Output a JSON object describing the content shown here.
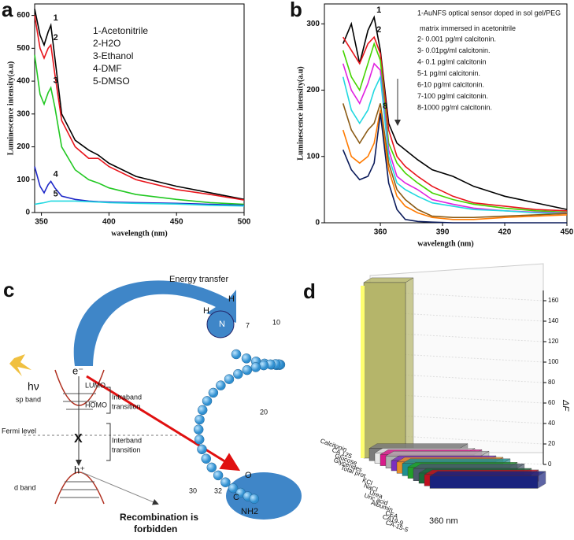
{
  "chart_data": [
    {
      "type": "line",
      "panel_label": "a",
      "xlabel": "wavelength (nm)",
      "ylabel": "Luminescence intensity(a.u)",
      "xlim": [
        345,
        500
      ],
      "ylim": [
        0,
        635
      ],
      "xticks": [
        350,
        400,
        450,
        500
      ],
      "yticks": [
        0,
        100,
        200,
        300,
        400,
        500,
        600
      ],
      "x": [
        345,
        349,
        352,
        355,
        357,
        360,
        365,
        375,
        385,
        392,
        400,
        420,
        450,
        475,
        500
      ],
      "series": [
        {
          "name": "1-Acetonitrile",
          "curve_label": "1",
          "color": "#000000",
          "values": [
            620,
            540,
            510,
            550,
            570,
            470,
            300,
            220,
            190,
            175,
            150,
            110,
            80,
            60,
            40
          ]
        },
        {
          "name": "2-H2O",
          "curve_label": "2",
          "color": "#e8141b",
          "values": [
            600,
            500,
            470,
            500,
            510,
            420,
            280,
            200,
            165,
            165,
            140,
            100,
            70,
            55,
            38
          ]
        },
        {
          "name": "3-Ethanol",
          "curve_label": "3",
          "color": "#22c822",
          "values": [
            480,
            360,
            330,
            365,
            380,
            320,
            200,
            130,
            100,
            90,
            75,
            55,
            40,
            30,
            25
          ]
        },
        {
          "name": "4-DMF",
          "curve_label": "4",
          "color": "#1e28c8",
          "values": [
            140,
            80,
            60,
            85,
            95,
            75,
            50,
            40,
            35,
            33,
            32,
            30,
            28,
            25,
            22
          ]
        },
        {
          "name": "5-DMSO",
          "curve_label": "5",
          "color": "#20d8e0",
          "values": [
            25,
            28,
            30,
            33,
            35,
            35,
            35,
            35,
            33,
            32,
            30,
            28,
            26,
            22,
            20
          ]
        }
      ]
    },
    {
      "type": "line",
      "panel_label": "b",
      "xlabel": "wavelength (nm)",
      "ylabel": "Luminescence intensity(a.u)",
      "xlim": [
        333,
        450
      ],
      "ylim": [
        0,
        330
      ],
      "xticks": [
        360,
        390,
        420,
        450
      ],
      "yticks": [
        0,
        100,
        200,
        300
      ],
      "legend_note": "matrix immersed in acetonitrile",
      "x": [
        342,
        346,
        350,
        354,
        357,
        360,
        364,
        368,
        372,
        378,
        385,
        395,
        405,
        420,
        435,
        450
      ],
      "series": [
        {
          "name": "1-AuNFS optical sensor doped in sol gel/PEG",
          "curve_label": "1",
          "color": "#000000",
          "values": [
            270,
            300,
            240,
            290,
            310,
            260,
            150,
            120,
            110,
            95,
            80,
            70,
            55,
            40,
            30,
            20
          ]
        },
        {
          "name": "2- 0.001 pg/ml calcitonin.",
          "curve_label": "2",
          "color": "#e8141b",
          "values": [
            280,
            260,
            240,
            270,
            280,
            255,
            140,
            100,
            85,
            70,
            55,
            40,
            30,
            25,
            20,
            18
          ]
        },
        {
          "name": "3- 0.01pg/ml calcitonin.",
          "color": "#44d400",
          "values": [
            260,
            220,
            200,
            240,
            270,
            245,
            120,
            90,
            75,
            60,
            45,
            35,
            28,
            22,
            18,
            16
          ]
        },
        {
          "name": "4- 0.1 pg/ml calcitonin",
          "color": "#e020e0",
          "values": [
            240,
            200,
            180,
            210,
            240,
            230,
            110,
            70,
            60,
            50,
            35,
            28,
            22,
            18,
            16,
            15
          ]
        },
        {
          "name": "5-1 pg/ml calcitonin.",
          "color": "#20d8e0",
          "values": [
            220,
            170,
            150,
            170,
            200,
            220,
            100,
            60,
            50,
            40,
            30,
            25,
            20,
            18,
            15,
            14
          ]
        },
        {
          "name": "6-10 pg/ml calcitonin.",
          "color": "#8b5a14",
          "values": [
            180,
            140,
            120,
            140,
            150,
            180,
            90,
            50,
            35,
            20,
            10,
            8,
            8,
            10,
            12,
            14
          ]
        },
        {
          "name": "7-100 pg/ml calcitonin.",
          "color": "#ff7a00",
          "values": [
            140,
            100,
            90,
            100,
            120,
            170,
            80,
            40,
            25,
            15,
            8,
            5,
            5,
            8,
            10,
            12
          ]
        },
        {
          "name": "8-1000 pg/ml calcitonin.",
          "curve_label": "8",
          "color": "#0a1a5a",
          "values": [
            110,
            80,
            65,
            70,
            90,
            165,
            60,
            20,
            5,
            2,
            1,
            0,
            0,
            0,
            0,
            0
          ]
        }
      ]
    },
    {
      "type": "bar3d",
      "panel_label": "d",
      "xlabel": "360 nm",
      "ylabel": "ΔF",
      "ylim": [
        0,
        170
      ],
      "yticks": [
        0,
        20,
        40,
        60,
        80,
        100,
        120,
        140,
        160
      ],
      "categories": [
        "Calcitonin",
        "CA 125",
        "Glucose",
        "Glycerides",
        "Total prot.",
        "KCl",
        "NaCl",
        "Urea",
        "Uric acid",
        "Albumin",
        "CEA",
        "CA19-9",
        "CA-15-5"
      ],
      "values": [
        165,
        12,
        10,
        11,
        12,
        10,
        11,
        12,
        11,
        12,
        10,
        11,
        12
      ],
      "colors": [
        "#b5b56a",
        "#7a7a7a",
        "#e8e8e8",
        "#d81b8a",
        "#b0b0b0",
        "#7b2fbe",
        "#e8902a",
        "#1f8f8f",
        "#22a02a",
        "#4a5a6a",
        "#1b6b3a",
        "#c01020",
        "#1a237e"
      ]
    }
  ],
  "diagram": {
    "panel_label": "c",
    "energy_transfer": "Energy transfer",
    "photon": "hν",
    "electron": "e⁻",
    "lumo": "LUMO",
    "homo": "HOMO",
    "sp_band": "sp band",
    "intraband_transition": [
      "Intraband",
      "transition"
    ],
    "fermi_level": "Fermi level",
    "cross": "X",
    "interband_transition": [
      "Interband",
      "transition"
    ],
    "hole": "h⁺",
    "d_band": "d band",
    "recombination": [
      "Recombination is",
      "forbidden"
    ],
    "molecule": {
      "h1": "H",
      "n": "N",
      "h2": "H",
      "numbers": [
        "7",
        "10",
        "20",
        "30",
        "32"
      ],
      "c": "C",
      "o": "O",
      "nh2": "NH2"
    }
  }
}
